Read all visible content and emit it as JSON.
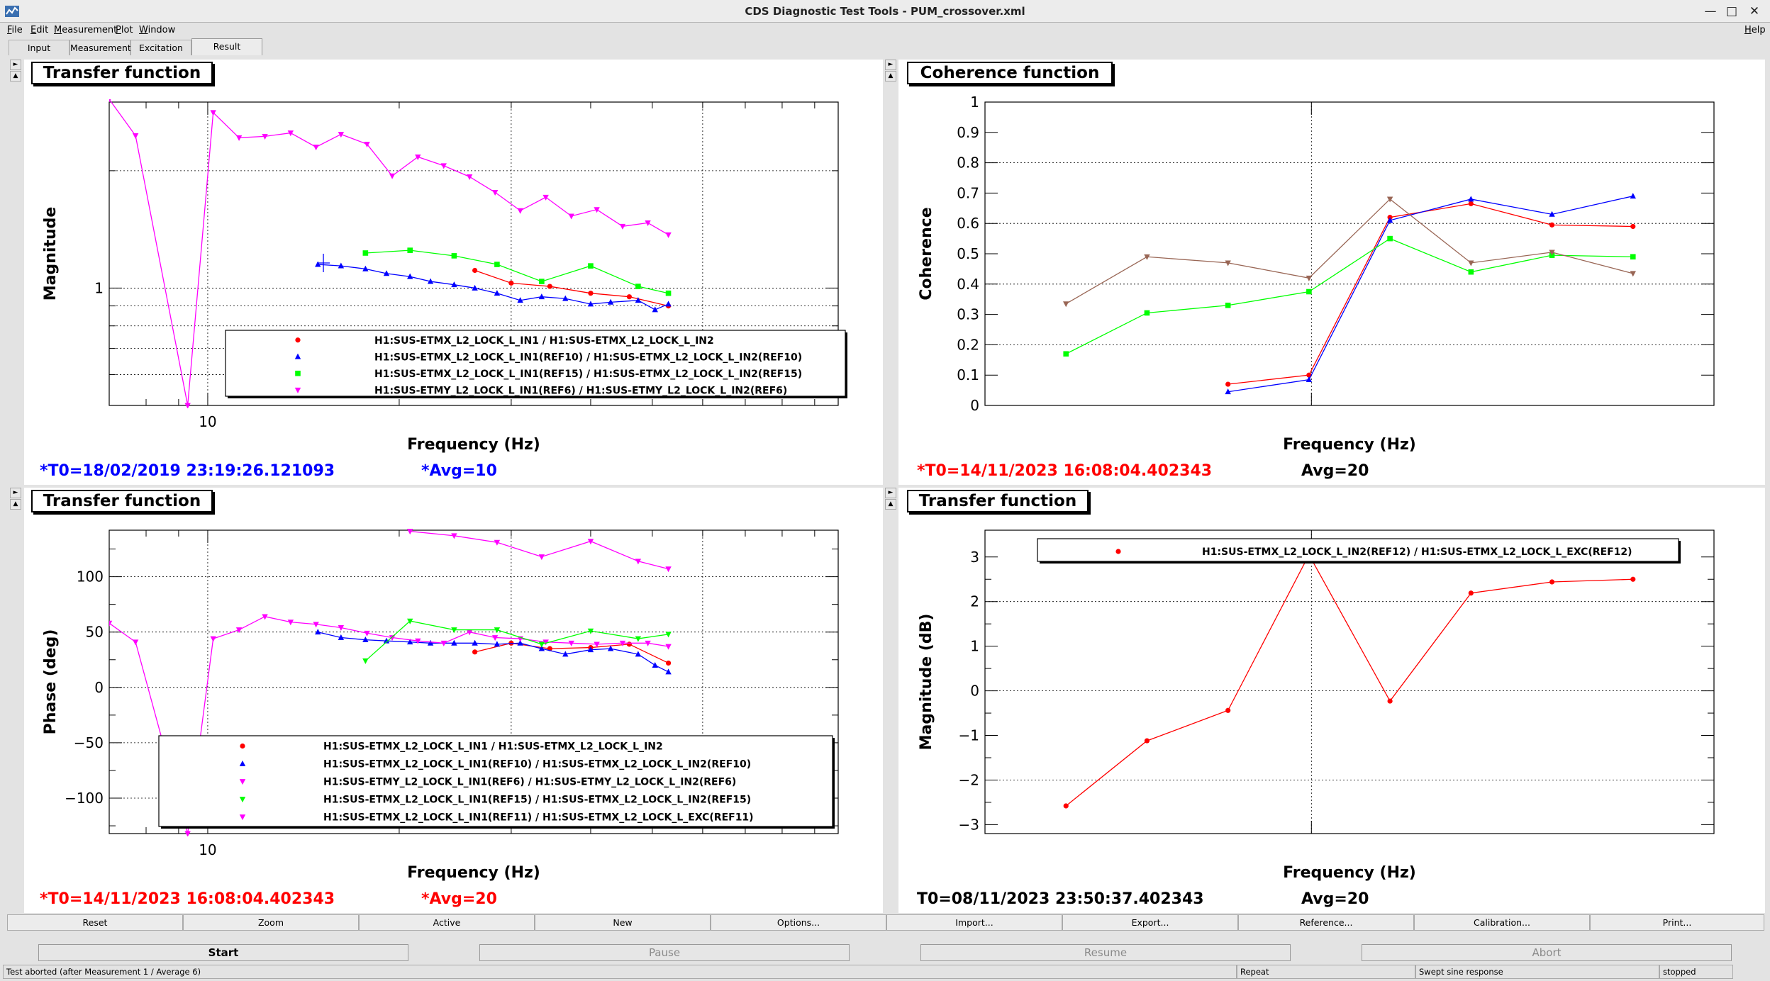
{
  "window": {
    "title": "CDS Diagnostic Test Tools - PUM_crossover.xml"
  },
  "menu": {
    "file": "File",
    "edit": "Edit",
    "measurement": "Measurement",
    "plot": "Plot",
    "window": "Window",
    "help": "Help"
  },
  "tabs": {
    "input": "Input",
    "measurement": "Measurement",
    "excitation": "Excitation",
    "result": "Result"
  },
  "panels": {
    "tf_mag": {
      "title": "Transfer function",
      "t0": "*T0=18/02/2019 23:19:26.121093",
      "avg": "*Avg=10",
      "chart_data": {
        "type": "line",
        "xlabel": "Frequency (Hz)",
        "ylabel": "Magnitude",
        "x_scale": "log",
        "y_scale": "log",
        "xlim": [
          7,
          100
        ],
        "ylim": [
          0.5,
          3
        ],
        "grid": true,
        "legend_position": "bottom-center",
        "xticks": [
          "10"
        ],
        "yticks": [
          "1"
        ],
        "series": [
          {
            "name": "H1:SUS-ETMX_L2_LOCK_L_IN1 / H1:SUS-ETMX_L2_LOCK_L_IN2",
            "color": "#ff0000",
            "marker": "circle",
            "x": [
              26.3,
              30,
              34.5,
              40,
              46,
              53
            ],
            "y": [
              1.11,
              1.03,
              1.01,
              0.97,
              0.95,
              0.9
            ]
          },
          {
            "name": "H1:SUS-ETMX_L2_LOCK_L_IN1(REF10) / H1:SUS-ETMX_L2_LOCK_L_IN2(REF10)",
            "color": "#0000ff",
            "marker": "triangle",
            "x": [
              14.9,
              16.2,
              17.7,
              19.1,
              20.8,
              22.4,
              24.4,
              26.3,
              28.5,
              31,
              33.5,
              36.5,
              40,
              43,
              47.5,
              50.5,
              53
            ],
            "y": [
              1.15,
              1.14,
              1.12,
              1.09,
              1.07,
              1.04,
              1.02,
              1.0,
              0.97,
              0.93,
              0.95,
              0.94,
              0.91,
              0.92,
              0.93,
              0.88,
              0.91
            ]
          },
          {
            "name": "H1:SUS-ETMX_L2_LOCK_L_IN1(REF15) / H1:SUS-ETMX_L2_LOCK_L_IN2(REF15)",
            "color": "#00ff00",
            "marker": "square",
            "x": [
              17.7,
              20.8,
              24.4,
              28.5,
              33.5,
              40,
              47.5,
              53
            ],
            "y": [
              1.23,
              1.25,
              1.21,
              1.15,
              1.04,
              1.14,
              1.01,
              0.97
            ]
          },
          {
            "name": "H1:SUS-ETMY_L2_LOCK_L_IN1(REF6) / H1:SUS-ETMY_L2_LOCK_L_IN2(REF6)",
            "color": "#ff00ff",
            "marker": "triangle-down",
            "x": [
              7,
              7.7,
              9.3,
              10.2,
              11.2,
              12.3,
              13.5,
              14.8,
              16.2,
              17.8,
              19.5,
              21.4,
              23.5,
              25.8,
              28.3,
              31,
              34,
              37.3,
              40.9,
              44.9,
              49.2,
              53
            ],
            "y": [
              3.05,
              2.46,
              0.5,
              2.82,
              2.43,
              2.45,
              2.5,
              2.3,
              2.48,
              2.34,
              1.94,
              2.17,
              2.06,
              1.93,
              1.76,
              1.58,
              1.71,
              1.53,
              1.59,
              1.44,
              1.47,
              1.37
            ]
          }
        ]
      }
    },
    "coherence": {
      "title": "Coherence function",
      "t0": "*T0=14/11/2023 16:08:04.402343",
      "avg": "Avg=20",
      "chart_data": {
        "type": "line",
        "xlabel": "Frequency (Hz)",
        "ylabel": "Coherence",
        "ylim": [
          0,
          1
        ],
        "grid": true,
        "yticks": [
          "0",
          "0.1",
          "0.2",
          "0.3",
          "0.4",
          "0.5",
          "0.6",
          "0.7",
          "0.8",
          "0.9",
          "1"
        ],
        "series": [
          {
            "color": "#ff0000",
            "marker": "circle",
            "x": [
              3,
              4,
              5,
              6,
              7,
              8
            ],
            "y": [
              0.07,
              0.1,
              0.62,
              0.665,
              0.595,
              0.59
            ]
          },
          {
            "color": "#0000ff",
            "marker": "triangle",
            "x": [
              3,
              4,
              5,
              6,
              7,
              8
            ],
            "y": [
              0.045,
              0.085,
              0.61,
              0.68,
              0.63,
              0.69
            ]
          },
          {
            "color": "#00ff00",
            "marker": "square",
            "x": [
              1,
              2,
              3,
              4,
              5,
              6,
              7,
              8
            ],
            "y": [
              0.17,
              0.305,
              0.33,
              0.375,
              0.55,
              0.44,
              0.495,
              0.49
            ]
          },
          {
            "color": "#996655",
            "marker": "triangle-down",
            "x": [
              1,
              2,
              3,
              4,
              5,
              6,
              7,
              8
            ],
            "y": [
              0.335,
              0.49,
              0.47,
              0.42,
              0.68,
              0.47,
              0.505,
              0.435
            ]
          }
        ]
      }
    },
    "tf_phase": {
      "title": "Transfer function",
      "t0": "*T0=14/11/2023 16:08:04.402343",
      "avg": "*Avg=20",
      "chart_data": {
        "type": "line",
        "xlabel": "Frequency (Hz)",
        "ylabel": "Phase (deg)",
        "x_scale": "log",
        "xlim": [
          7,
          100
        ],
        "ylim": [
          -132,
          142
        ],
        "grid": true,
        "legend_position": "bottom-center",
        "xticks": [
          "10"
        ],
        "yticks": [
          "−100",
          "−50",
          "0",
          "50",
          "100"
        ],
        "series": [
          {
            "name": "H1:SUS-ETMX_L2_LOCK_L_IN1 / H1:SUS-ETMX_L2_LOCK_L_IN2",
            "color": "#ff0000",
            "marker": "circle",
            "x": [
              26.3,
              30,
              34.5,
              40,
              46,
              53
            ],
            "y": [
              32,
              40,
              35,
              36,
              39,
              22
            ]
          },
          {
            "name": "H1:SUS-ETMX_L2_LOCK_L_IN1(REF10) / H1:SUS-ETMX_L2_LOCK_L_IN2(REF10)",
            "color": "#0000ff",
            "marker": "triangle",
            "x": [
              14.9,
              16.2,
              17.7,
              19.1,
              20.8,
              22.4,
              24.4,
              26.3,
              28.5,
              31,
              33.5,
              36.5,
              40,
              43,
              47.5,
              50.5,
              53
            ],
            "y": [
              50,
              45,
              43,
              42,
              41,
              40,
              40,
              40,
              39,
              40,
              35,
              30,
              34,
              35,
              30,
              20,
              14
            ]
          },
          {
            "name": "H1:SUS-ETMY_L2_LOCK_L_IN1(REF6) / H1:SUS-ETMY_L2_LOCK_L_IN2(REF6)",
            "color": "#ff00ff",
            "marker": "triangle-down",
            "x": [
              7,
              7.7,
              9.3,
              10.2,
              11.2,
              12.3,
              13.5,
              14.8,
              16.2,
              17.8,
              19.5,
              21.4,
              23.5,
              25.8,
              28.3,
              31,
              34,
              37.3,
              40.9,
              44.9,
              49.2,
              53
            ],
            "y": [
              58,
              41,
              -132,
              44,
              52,
              64,
              59,
              57,
              54,
              49,
              45,
              42,
              40,
              50,
              45,
              44,
              41,
              40,
              39,
              40,
              40,
              37
            ]
          },
          {
            "name": "H1:SUS-ETMX_L2_LOCK_L_IN1(REF15) / H1:SUS-ETMX_L2_LOCK_L_IN2(REF15)",
            "color": "#00ff00",
            "marker": "triangle-down",
            "x": [
              17.7,
              20.8,
              24.4,
              28.5,
              33.5,
              40,
              47.5,
              53
            ],
            "y": [
              24,
              60,
              52,
              52,
              39,
              51,
              44,
              48
            ]
          },
          {
            "name": "H1:SUS-ETMX_L2_LOCK_L_IN1(REF11) / H1:SUS-ETMX_L2_LOCK_L_EXC(REF11)",
            "color": "#ff00ff",
            "marker": "triangle-down",
            "x": [
              20.8,
              24.4,
              28.5,
              33.5,
              40,
              47.5,
              53
            ],
            "y": [
              141,
              137,
              131,
              118,
              132,
              114,
              107
            ]
          }
        ]
      }
    },
    "tf_db": {
      "title": "Transfer function",
      "t0": "T0=08/11/2023 23:50:37.402343",
      "avg": "Avg=20",
      "chart_data": {
        "type": "line",
        "xlabel": "Frequency (Hz)",
        "ylabel": "Magnitude (dB)",
        "ylim": [
          -3.2,
          3.6
        ],
        "grid": true,
        "legend_position": "top-right",
        "yticks": [
          "−3",
          "−2",
          "−1",
          "0",
          "1",
          "2",
          "3"
        ],
        "series": [
          {
            "name": "H1:SUS-ETMX_L2_LOCK_L_IN2(REF12) / H1:SUS-ETMX_L2_LOCK_L_EXC(REF12)",
            "color": "#ff0000",
            "marker": "circle",
            "x": [
              1,
              2,
              3,
              4,
              5,
              6,
              7,
              8
            ],
            "y": [
              -2.58,
              -1.12,
              -0.44,
              3.05,
              -0.23,
              2.19,
              2.44,
              2.5
            ]
          }
        ]
      }
    }
  },
  "toolbar": {
    "reset": "Reset",
    "zoom": "Zoom",
    "active": "Active",
    "new": "New",
    "options": "Options...",
    "import": "Import...",
    "export": "Export...",
    "reference": "Reference...",
    "calibration": "Calibration...",
    "print": "Print..."
  },
  "controls": {
    "start": "Start",
    "pause": "Pause",
    "resume": "Resume",
    "abort": "Abort"
  },
  "status": {
    "message": "Test aborted (after Measurement 1 / Average 6)",
    "repeat": "Repeat",
    "type": "Swept sine response",
    "state": "stopped"
  }
}
